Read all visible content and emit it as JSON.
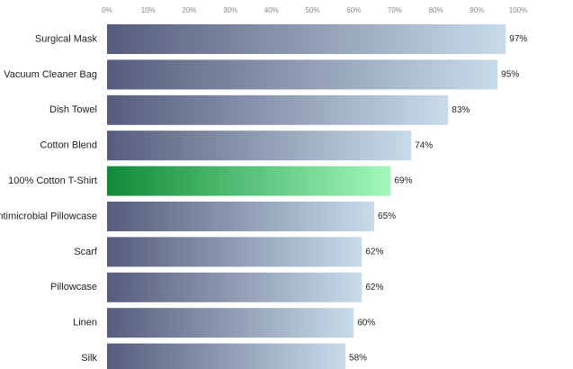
{
  "chart_data": {
    "type": "bar",
    "orientation": "horizontal",
    "categories": [
      "Surgical Mask",
      "Vacuum Cleaner Bag",
      "Dish Towel",
      "Cotton Blend",
      "100% Cotton T-Shirt",
      "Antimicrobial Pillowcase",
      "Scarf",
      "Pillowcase",
      "Linen",
      "Silk"
    ],
    "values": [
      97,
      95,
      83,
      74,
      69,
      65,
      62,
      62,
      60,
      58
    ],
    "value_labels": [
      "97%",
      "95%",
      "83%",
      "74%",
      "69%",
      "65%",
      "62%",
      "62%",
      "60%",
      "58%"
    ],
    "xlim": [
      0,
      100
    ],
    "xticks": [
      {
        "value": 0,
        "label": "0%"
      },
      {
        "value": 10,
        "label": "10%"
      },
      {
        "value": 20,
        "label": "20%"
      },
      {
        "value": 30,
        "label": "30%"
      },
      {
        "value": 40,
        "label": "40%"
      },
      {
        "value": 50,
        "label": "50%"
      },
      {
        "value": 60,
        "label": "60%"
      },
      {
        "value": 70,
        "label": "70%"
      },
      {
        "value": 80,
        "label": "80%"
      },
      {
        "value": 90,
        "label": "90%"
      },
      {
        "value": 100,
        "label": "100%"
      }
    ],
    "gradient": [
      "#565c7d",
      "#c8dbea"
    ],
    "highlight_index": 4,
    "highlight_gradient": [
      "#118a38",
      "#a2f8ba"
    ],
    "grid": false
  }
}
